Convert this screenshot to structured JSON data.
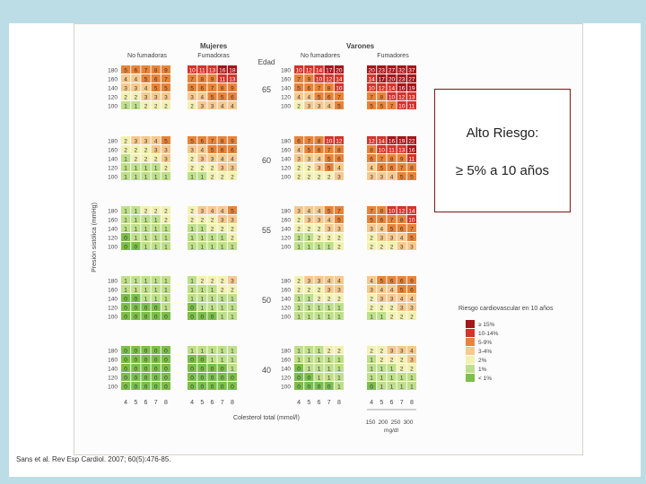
{
  "colors": {
    "c0": "#7cbf4a",
    "c1": "#bfe08a",
    "c2": "#f3f1b2",
    "c3": "#f6c98e",
    "c5": "#e8843a",
    "c10": "#d3342a",
    "c15": "#a3161a",
    "text_light": "#ffffff",
    "text_dark": "#333333"
  },
  "callout": {
    "title": "Alto Riesgo:",
    "subtitle": "≥ 5% a 10 años"
  },
  "citation": "Sans et al. Rev Esp Cardiol. 2007; 60(5):476-85.",
  "chart_data": {
    "type": "heatmap",
    "header_women": "Mujeres",
    "header_men": "Varones",
    "header_nonsmoker": "No fumadoras",
    "header_smoker": "Fumadoras",
    "header_men_nonsmoker": "No fumadores",
    "header_men_smoker": "Fumadores",
    "header_age": "Edad",
    "ylabel": "Presión sistólica (mmHg)",
    "xlabel": "Colesterol total (mmol/l)",
    "mgdl_label": "mg/dl",
    "mgdl_ticks": [
      "150",
      "200",
      "250",
      "300"
    ],
    "sbp_ticks": [
      "180",
      "160",
      "140",
      "120",
      "100"
    ],
    "chol_ticks": [
      "4",
      "5",
      "6",
      "7",
      "8"
    ],
    "legend_title": "Riesgo cardiovascular en 10 años",
    "legend": [
      {
        "label": "≥ 15%",
        "color": "#a3161a"
      },
      {
        "label": "10-14%",
        "color": "#d3342a"
      },
      {
        "label": "5-9%",
        "color": "#e8843a"
      },
      {
        "label": "3-4%",
        "color": "#f6c98e"
      },
      {
        "label": "2%",
        "color": "#f3f1b2"
      },
      {
        "label": "1%",
        "color": "#bfe08a"
      },
      {
        "label": "< 1%",
        "color": "#7cbf4a"
      }
    ],
    "ages": [
      "65",
      "60",
      "55",
      "50",
      "40"
    ],
    "grids": [
      [
        [
          [
            5,
            6,
            7,
            8,
            9
          ],
          [
            4,
            4,
            5,
            6,
            7
          ],
          [
            3,
            3,
            4,
            5,
            5
          ],
          [
            2,
            2,
            3,
            3,
            3
          ],
          [
            1,
            1,
            2,
            2,
            2
          ]
        ],
        [
          [
            10,
            11,
            13,
            16,
            18
          ],
          [
            7,
            8,
            9,
            11,
            13
          ],
          [
            5,
            6,
            7,
            8,
            9
          ],
          [
            3,
            4,
            5,
            5,
            6
          ],
          [
            2,
            3,
            3,
            4,
            4
          ]
        ],
        [
          [
            10,
            12,
            14,
            17,
            20
          ],
          [
            7,
            9,
            10,
            12,
            14
          ],
          [
            5,
            6,
            7,
            8,
            10
          ],
          [
            4,
            4,
            5,
            6,
            7
          ],
          [
            2,
            3,
            3,
            4,
            5
          ]
        ],
        [
          [
            20,
            23,
            27,
            32,
            37
          ],
          [
            14,
            17,
            20,
            23,
            27
          ],
          [
            10,
            12,
            14,
            16,
            19
          ],
          [
            7,
            8,
            10,
            12,
            13
          ],
          [
            5,
            5,
            7,
            10,
            11
          ]
        ]
      ],
      [
        [
          [
            2,
            3,
            3,
            4,
            5
          ],
          [
            2,
            2,
            2,
            3,
            3
          ],
          [
            1,
            2,
            2,
            2,
            3
          ],
          [
            1,
            1,
            1,
            1,
            2
          ],
          [
            1,
            1,
            1,
            1,
            1
          ]
        ],
        [
          [
            5,
            6,
            7,
            8,
            9
          ],
          [
            3,
            4,
            5,
            6,
            6
          ],
          [
            2,
            3,
            3,
            4,
            4
          ],
          [
            2,
            2,
            2,
            3,
            3
          ],
          [
            1,
            1,
            2,
            2,
            2
          ]
        ],
        [
          [
            6,
            7,
            8,
            10,
            12
          ],
          [
            4,
            5,
            6,
            7,
            8
          ],
          [
            3,
            3,
            4,
            5,
            6
          ],
          [
            2,
            2,
            3,
            5,
            4
          ],
          [
            2,
            2,
            2,
            2,
            3
          ]
        ],
        [
          [
            12,
            14,
            16,
            19,
            22
          ],
          [
            8,
            10,
            11,
            13,
            16
          ],
          [
            6,
            7,
            8,
            9,
            11
          ],
          [
            4,
            5,
            6,
            7,
            8
          ],
          [
            3,
            3,
            4,
            5,
            5
          ]
        ]
      ],
      [
        [
          [
            1,
            1,
            2,
            2,
            2
          ],
          [
            1,
            1,
            1,
            1,
            2
          ],
          [
            1,
            1,
            1,
            1,
            1
          ],
          [
            0,
            1,
            1,
            1,
            1
          ],
          [
            0,
            0,
            1,
            1,
            1
          ]
        ],
        [
          [
            2,
            3,
            4,
            4,
            5
          ],
          [
            2,
            2,
            2,
            3,
            3
          ],
          [
            1,
            1,
            2,
            2,
            2
          ],
          [
            1,
            1,
            1,
            1,
            2
          ],
          [
            1,
            1,
            1,
            1,
            1
          ]
        ],
        [
          [
            3,
            4,
            4,
            5,
            7
          ],
          [
            2,
            3,
            3,
            4,
            5
          ],
          [
            2,
            2,
            2,
            3,
            3
          ],
          [
            1,
            1,
            2,
            2,
            2
          ],
          [
            1,
            1,
            1,
            1,
            2
          ]
        ],
        [
          [
            7,
            8,
            10,
            12,
            14
          ],
          [
            5,
            6,
            7,
            8,
            10
          ],
          [
            3,
            4,
            5,
            6,
            7
          ],
          [
            2,
            3,
            3,
            4,
            5
          ],
          [
            2,
            2,
            2,
            3,
            3
          ]
        ]
      ],
      [
        [
          [
            1,
            1,
            1,
            1,
            1
          ],
          [
            1,
            1,
            1,
            1,
            1
          ],
          [
            0,
            0,
            1,
            1,
            1
          ],
          [
            0,
            0,
            0,
            0,
            1
          ],
          [
            0,
            0,
            0,
            0,
            0
          ]
        ],
        [
          [
            1,
            2,
            2,
            2,
            3
          ],
          [
            1,
            1,
            1,
            2,
            2
          ],
          [
            1,
            1,
            1,
            1,
            1
          ],
          [
            0,
            1,
            1,
            1,
            1
          ],
          [
            0,
            0,
            0,
            1,
            1
          ]
        ],
        [
          [
            2,
            3,
            3,
            4,
            4
          ],
          [
            2,
            2,
            2,
            3,
            3
          ],
          [
            1,
            1,
            2,
            2,
            2
          ],
          [
            1,
            1,
            1,
            1,
            1
          ],
          [
            1,
            1,
            1,
            1,
            1
          ]
        ],
        [
          [
            4,
            5,
            6,
            6,
            9
          ],
          [
            3,
            4,
            4,
            5,
            6
          ],
          [
            2,
            3,
            3,
            4,
            4
          ],
          [
            2,
            2,
            2,
            3,
            3
          ],
          [
            1,
            1,
            2,
            2,
            2
          ]
        ]
      ],
      [
        [
          [
            0,
            0,
            0,
            0,
            0
          ],
          [
            0,
            0,
            0,
            0,
            0
          ],
          [
            0,
            0,
            0,
            0,
            0
          ],
          [
            0,
            0,
            0,
            0,
            0
          ],
          [
            0,
            0,
            0,
            0,
            0
          ]
        ],
        [
          [
            1,
            1,
            1,
            1,
            1
          ],
          [
            0,
            0,
            1,
            1,
            1
          ],
          [
            0,
            0,
            0,
            0,
            1
          ],
          [
            0,
            0,
            0,
            0,
            0
          ],
          [
            0,
            0,
            0,
            0,
            0
          ]
        ],
        [
          [
            1,
            1,
            1,
            2,
            2
          ],
          [
            1,
            1,
            1,
            1,
            1
          ],
          [
            0,
            1,
            1,
            1,
            1
          ],
          [
            0,
            0,
            1,
            1,
            1
          ],
          [
            0,
            0,
            0,
            0,
            1
          ]
        ],
        [
          [
            2,
            2,
            3,
            3,
            4
          ],
          [
            1,
            2,
            2,
            2,
            3
          ],
          [
            1,
            1,
            1,
            2,
            2
          ],
          [
            1,
            1,
            1,
            1,
            1
          ],
          [
            0,
            1,
            1,
            1,
            1
          ]
        ]
      ]
    ]
  }
}
